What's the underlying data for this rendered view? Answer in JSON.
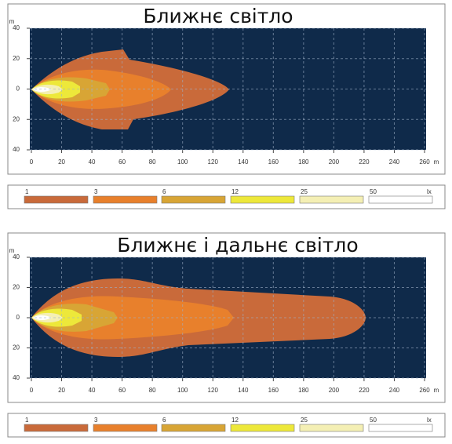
{
  "panels": [
    {
      "title": "Ближнє світло",
      "y_unit": "m",
      "x_unit": "m",
      "yticks": [
        40,
        20,
        0,
        20,
        40
      ],
      "xticks": [
        0,
        20,
        40,
        60,
        80,
        100,
        120,
        140,
        160,
        180,
        200,
        220,
        240,
        260
      ],
      "legend": {
        "labels": [
          1,
          3,
          6,
          12,
          25,
          50
        ],
        "unit": "lx",
        "colors": [
          "#c96a3a",
          "#e8802c",
          "#d8a535",
          "#ede83a",
          "#f4efb4",
          "#ffffff"
        ]
      }
    },
    {
      "title": "Ближнє і дальнє світло",
      "y_unit": "m",
      "x_unit": "m",
      "yticks": [
        40,
        20,
        0,
        20,
        40
      ],
      "xticks": [
        0,
        20,
        40,
        60,
        80,
        100,
        120,
        140,
        160,
        180,
        200,
        220,
        240,
        260
      ],
      "legend": {
        "labels": [
          1,
          3,
          6,
          12,
          25,
          50
        ],
        "unit": "lx",
        "colors": [
          "#c96a3a",
          "#e8802c",
          "#d8a535",
          "#ede83a",
          "#f4efb4",
          "#ffffff"
        ]
      }
    }
  ]
}
